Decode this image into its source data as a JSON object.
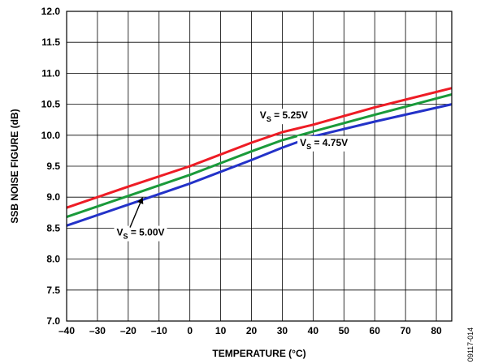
{
  "chart_data": {
    "type": "line",
    "title": "",
    "xlabel": "TEMPERATURE (°C)",
    "ylabel": "SSB NOISE FIGURE (dB)",
    "xlim": [
      -40,
      85
    ],
    "ylim": [
      7.0,
      12.0
    ],
    "x_ticks": [
      -40,
      -30,
      -20,
      -10,
      0,
      10,
      20,
      30,
      40,
      50,
      60,
      70,
      80
    ],
    "x_tick_labels": [
      "–40",
      "–30",
      "–20",
      "–10",
      "0",
      "10",
      "20",
      "30",
      "40",
      "50",
      "60",
      "70",
      "80"
    ],
    "y_ticks": [
      7.0,
      7.5,
      8.0,
      8.5,
      9.0,
      9.5,
      10.0,
      10.5,
      11.0,
      11.5,
      12.0
    ],
    "y_tick_labels": [
      "7.0",
      "7.5",
      "8.0",
      "8.5",
      "9.0",
      "9.5",
      "10.0",
      "10.5",
      "11.0",
      "11.5",
      "12.0"
    ],
    "grid": true,
    "series": [
      {
        "name": "VS = 5.25V",
        "label_main": "V",
        "label_sub": "S",
        "label_rest": " = 5.25V",
        "color": "#ee1c25",
        "x": [
          -40,
          -20,
          0,
          20,
          30,
          40,
          60,
          85
        ],
        "y": [
          8.83,
          9.17,
          9.5,
          9.88,
          10.05,
          10.17,
          10.45,
          10.76
        ]
      },
      {
        "name": "VS = 5.00V",
        "label_main": "V",
        "label_sub": "S",
        "label_rest": " = 5.00V",
        "color": "#1a9a3a",
        "x": [
          -40,
          -20,
          0,
          20,
          30,
          40,
          60,
          85
        ],
        "y": [
          8.68,
          9.02,
          9.36,
          9.74,
          9.92,
          10.06,
          10.33,
          10.66
        ]
      },
      {
        "name": "VS = 4.75V",
        "label_main": "V",
        "label_sub": "S",
        "label_rest": " = 4.75V",
        "color": "#2332c8",
        "x": [
          -40,
          -20,
          0,
          20,
          30,
          40,
          60,
          85
        ],
        "y": [
          8.54,
          8.88,
          9.22,
          9.6,
          9.8,
          9.98,
          10.22,
          10.5
        ]
      }
    ],
    "annotations": [
      {
        "series": 0,
        "x_data": 30.5,
        "y_data": 10.27
      },
      {
        "series": 2,
        "x_data": 43.5,
        "y_data": 9.83
      },
      {
        "series": 1,
        "x_data": -16,
        "y_data": 8.38,
        "arrow_to": [
          -15.5,
          9.03
        ]
      }
    ]
  },
  "figure_id": "09117-014"
}
